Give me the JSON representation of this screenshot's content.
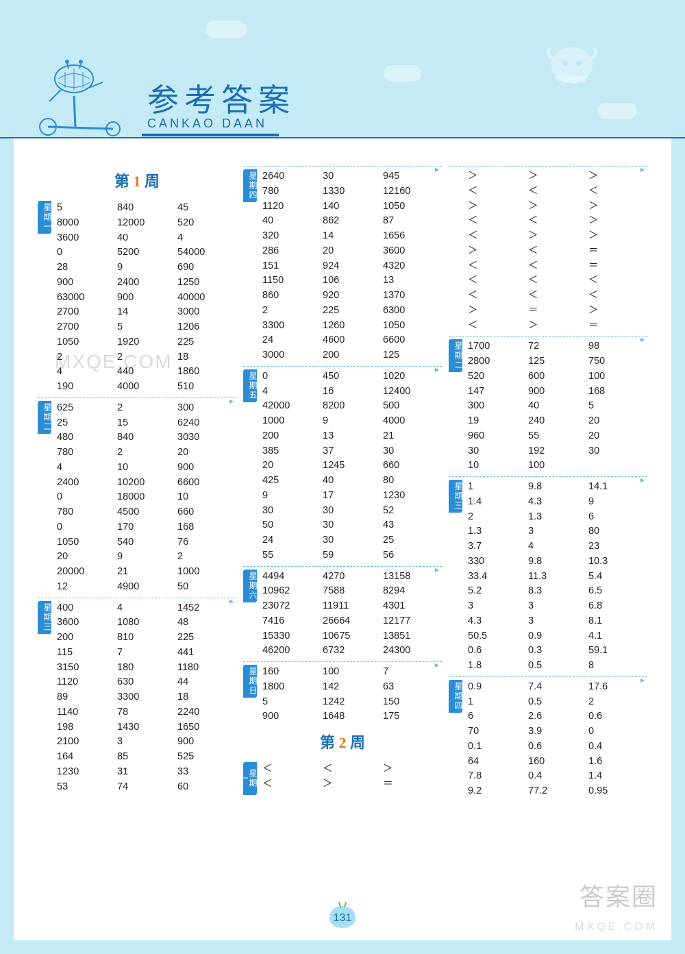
{
  "header": {
    "title_cn": "参考答案",
    "title_en": "CANKAO  DAAN"
  },
  "page_number": "131",
  "watermarks": {
    "site": "MXQE.COM",
    "brand": "答案圈"
  },
  "columns": [
    {
      "week_title": {
        "prefix": "第",
        "num": "1",
        "suffix": "周"
      },
      "sections": [
        {
          "day": "星期一",
          "rows": [
            [
              "5",
              "840",
              "45"
            ],
            [
              "8000",
              "12000",
              "520"
            ],
            [
              "3600",
              "40",
              "4"
            ],
            [
              "0",
              "5200",
              "54000"
            ],
            [
              "28",
              "9",
              "690"
            ],
            [
              "900",
              "2400",
              "1250"
            ],
            [
              "63000",
              "900",
              "40000"
            ],
            [
              "2700",
              "14",
              "3000"
            ],
            [
              "2700",
              "5",
              "1206"
            ],
            [
              "1050",
              "1920",
              "225"
            ],
            [
              "2",
              "2",
              "18"
            ],
            [
              "4",
              "440",
              "1860"
            ],
            [
              "190",
              "4000",
              "510"
            ]
          ]
        },
        {
          "day": "星期二",
          "rows": [
            [
              "625",
              "2",
              "300"
            ],
            [
              "25",
              "15",
              "6240"
            ],
            [
              "480",
              "840",
              "3030"
            ],
            [
              "780",
              "2",
              "20"
            ],
            [
              "4",
              "10",
              "900"
            ],
            [
              "2400",
              "10200",
              "6600"
            ],
            [
              "0",
              "18000",
              "10"
            ],
            [
              "780",
              "4500",
              "660"
            ],
            [
              "0",
              "170",
              "168"
            ],
            [
              "1050",
              "540",
              "76"
            ],
            [
              "20",
              "9",
              "2"
            ],
            [
              "20000",
              "21",
              "1000"
            ],
            [
              "12",
              "4900",
              "50"
            ]
          ]
        },
        {
          "day": "星期三",
          "rows": [
            [
              "400",
              "4",
              "1452"
            ],
            [
              "3600",
              "1080",
              "48"
            ],
            [
              "200",
              "810",
              "225"
            ],
            [
              "115",
              "7",
              "441"
            ],
            [
              "3150",
              "180",
              "1180"
            ],
            [
              "1120",
              "630",
              "44"
            ],
            [
              "89",
              "3300",
              "18"
            ],
            [
              "1140",
              "78",
              "2240"
            ],
            [
              "198",
              "1430",
              "1650"
            ],
            [
              "2100",
              "3",
              "900"
            ],
            [
              "164",
              "85",
              "525"
            ],
            [
              "1230",
              "31",
              "33"
            ],
            [
              "53",
              "74",
              "60"
            ]
          ]
        }
      ]
    },
    {
      "sections": [
        {
          "day": "星期四",
          "rows": [
            [
              "2640",
              "30",
              "945"
            ],
            [
              "780",
              "1330",
              "12160"
            ],
            [
              "1120",
              "140",
              "1050"
            ],
            [
              "40",
              "862",
              "87"
            ],
            [
              "320",
              "14",
              "1656"
            ],
            [
              "286",
              "20",
              "3600"
            ],
            [
              "151",
              "924",
              "4320"
            ],
            [
              "1150",
              "106",
              "13"
            ],
            [
              "860",
              "920",
              "1370"
            ],
            [
              "2",
              "225",
              "6300"
            ],
            [
              "3300",
              "1260",
              "1050"
            ],
            [
              "24",
              "4600",
              "6600"
            ],
            [
              "3000",
              "200",
              "125"
            ]
          ]
        },
        {
          "day": "星期五",
          "rows": [
            [
              "0",
              "450",
              "1020"
            ],
            [
              "4",
              "16",
              "12400"
            ],
            [
              "42000",
              "8200",
              "500"
            ],
            [
              "1000",
              "9",
              "4000"
            ],
            [
              "200",
              "13",
              "21"
            ],
            [
              "385",
              "37",
              "30"
            ],
            [
              "20",
              "1245",
              "660"
            ],
            [
              "425",
              "40",
              "80"
            ],
            [
              "9",
              "17",
              "1230"
            ],
            [
              "30",
              "30",
              "52"
            ],
            [
              "50",
              "30",
              "43"
            ],
            [
              "24",
              "30",
              "25"
            ],
            [
              "55",
              "59",
              "56"
            ]
          ]
        },
        {
          "day": "星期六",
          "rows": [
            [
              "4494",
              "4270",
              "13158"
            ],
            [
              "10962",
              "7588",
              "8294"
            ],
            [
              "23072",
              "11911",
              "4301"
            ],
            [
              "7416",
              "26664",
              "12177"
            ],
            [
              "15330",
              "10675",
              "13851"
            ],
            [
              "46200",
              "6732",
              "24300"
            ]
          ]
        },
        {
          "day": "星期日",
          "rows": [
            [
              "160",
              "100",
              "7"
            ],
            [
              "1800",
              "142",
              "63"
            ],
            [
              "5",
              "1242",
              "150"
            ],
            [
              "900",
              "1648",
              "175"
            ]
          ]
        }
      ],
      "week_title_bottom": {
        "prefix": "第",
        "num": "2",
        "suffix": "周"
      },
      "sections_after": [
        {
          "day": "星期一",
          "rows": [
            [
              "＜",
              "＜",
              "＞"
            ],
            [
              "＜",
              "＞",
              "＝"
            ]
          ]
        }
      ]
    },
    {
      "sections": [
        {
          "day": "",
          "rows": [
            [
              "＞",
              "＞",
              "＞"
            ],
            [
              "＜",
              "＜",
              "＜"
            ],
            [
              "＞",
              "＞",
              "＞"
            ],
            [
              "＜",
              "＜",
              "＞"
            ],
            [
              "＜",
              "＞",
              "＞"
            ],
            [
              "＞",
              "＜",
              "＝"
            ],
            [
              "＜",
              "＜",
              "＝"
            ],
            [
              "＜",
              "＜",
              "＜"
            ],
            [
              "＜",
              "＜",
              "＜"
            ],
            [
              "＞",
              "＝",
              "＞"
            ],
            [
              "＜",
              "＞",
              "＝"
            ]
          ]
        },
        {
          "day": "星期二",
          "rows": [
            [
              "1700",
              "72",
              "98"
            ],
            [
              "2800",
              "125",
              "750"
            ],
            [
              "520",
              "600",
              "100"
            ],
            [
              "147",
              "900",
              "168"
            ],
            [
              "300",
              "40",
              "5"
            ],
            [
              "19",
              "240",
              "20"
            ],
            [
              "960",
              "55",
              "20"
            ],
            [
              "30",
              "192",
              "30"
            ],
            [
              "10",
              "100",
              ""
            ]
          ]
        },
        {
          "day": "星期三",
          "rows": [
            [
              "1",
              "9.8",
              "14.1"
            ],
            [
              "1.4",
              "4.3",
              "9"
            ],
            [
              "2",
              "1.3",
              "6"
            ],
            [
              "1.3",
              "3",
              "80"
            ],
            [
              "3.7",
              "4",
              "23"
            ],
            [
              "330",
              "9.8",
              "10.3"
            ],
            [
              "33.4",
              "11.3",
              "5.4"
            ],
            [
              "5.2",
              "8.3",
              "6.5"
            ],
            [
              "3",
              "3",
              "6.8"
            ],
            [
              "4.3",
              "3",
              "8.1"
            ],
            [
              "50.5",
              "0.9",
              "4.1"
            ],
            [
              "0.6",
              "0.3",
              "59.1"
            ],
            [
              "1.8",
              "0.5",
              "8"
            ]
          ]
        },
        {
          "day": "星期四",
          "rows": [
            [
              "0.9",
              "7.4",
              "17.6"
            ],
            [
              "1",
              "0.5",
              "2"
            ],
            [
              "6",
              "2.6",
              "0.6"
            ],
            [
              "70",
              "3.9",
              "0"
            ],
            [
              "0.1",
              "0.6",
              "0.4"
            ],
            [
              "64",
              "160",
              "1.6"
            ],
            [
              "7.8",
              "0.4",
              "1.4"
            ],
            [
              "9.2",
              "77.2",
              "0.95"
            ]
          ]
        }
      ]
    }
  ]
}
